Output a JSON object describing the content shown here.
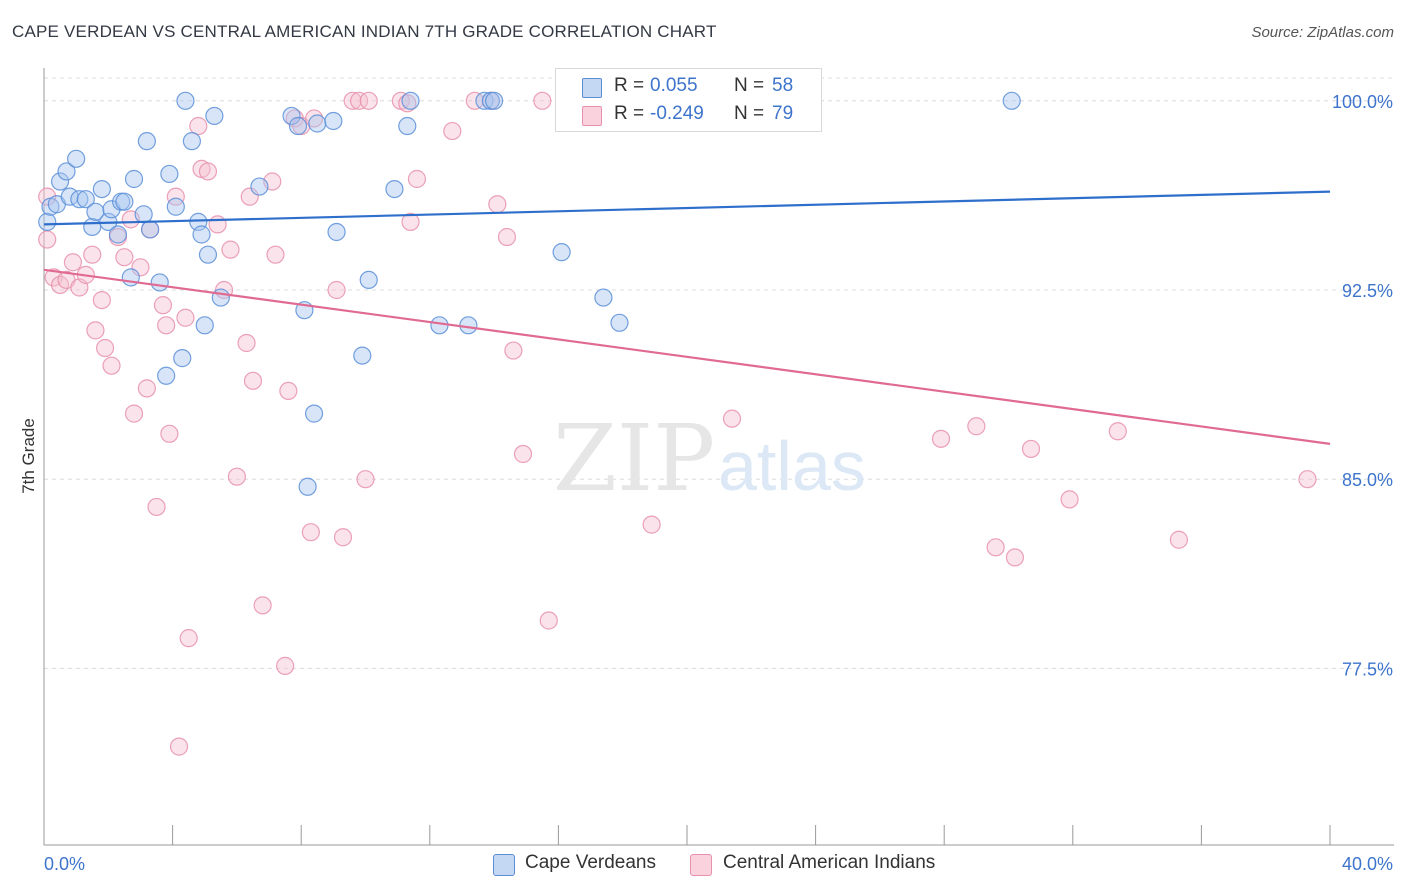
{
  "title": "CAPE VERDEAN VS CENTRAL AMERICAN INDIAN 7TH GRADE CORRELATION CHART",
  "source": "Source: ZipAtlas.com",
  "watermark": {
    "zip": "ZIP",
    "atlas": "atlas"
  },
  "legend_top": {
    "rows": [
      {
        "r_label": "R =",
        "r_value": "0.055",
        "n_label": "N =",
        "n_value": "58"
      },
      {
        "r_label": "R =",
        "r_value": "-0.249",
        "n_label": "N =",
        "n_value": "79"
      }
    ]
  },
  "colors": {
    "blue_fill": "#a9c6ef",
    "blue_stroke": "#5a8fd8",
    "blue_line": "#2f6fcc",
    "pink_fill": "#f5c0d0",
    "pink_stroke": "#e791ad",
    "pink_line": "#e06a92",
    "tick_label": "#3e74cc",
    "grid": "#dcdcdc"
  },
  "chart_data": {
    "type": "scatter",
    "title": "CAPE VERDEAN VS CENTRAL AMERICAN INDIAN 7TH GRADE CORRELATION CHART",
    "xlabel": "",
    "ylabel": "7th Grade",
    "xlim": [
      0,
      40
    ],
    "ylim": [
      70.5,
      101.3
    ],
    "x_tick_labels": [
      "0.0%",
      "40.0%"
    ],
    "y_ticks": [
      77.5,
      85.0,
      92.5,
      100.0
    ],
    "y_tick_labels": [
      "77.5%",
      "85.0%",
      "92.5%",
      "100.0%"
    ],
    "grid": "horizontal dashed",
    "legend_position": "bottom-center",
    "series": [
      {
        "name": "Cape Verdeans",
        "r": 0.055,
        "n": 58,
        "trend": {
          "x0": 0,
          "y0": 95.1,
          "x1": 40,
          "y1": 96.4
        },
        "points": [
          [
            0.1,
            95.2
          ],
          [
            0.2,
            95.8
          ],
          [
            0.4,
            95.9
          ],
          [
            0.5,
            96.8
          ],
          [
            0.7,
            97.2
          ],
          [
            0.8,
            96.2
          ],
          [
            1.0,
            97.7
          ],
          [
            1.1,
            96.1
          ],
          [
            1.3,
            96.1
          ],
          [
            1.5,
            95.0
          ],
          [
            1.6,
            95.6
          ],
          [
            1.8,
            96.5
          ],
          [
            2.0,
            95.2
          ],
          [
            2.1,
            95.7
          ],
          [
            2.3,
            94.7
          ],
          [
            2.4,
            96.0
          ],
          [
            2.5,
            96.0
          ],
          [
            2.7,
            93.0
          ],
          [
            2.8,
            96.9
          ],
          [
            3.1,
            95.5
          ],
          [
            3.2,
            98.4
          ],
          [
            3.3,
            94.9
          ],
          [
            3.6,
            92.8
          ],
          [
            3.8,
            89.1
          ],
          [
            3.9,
            97.1
          ],
          [
            4.1,
            95.8
          ],
          [
            4.3,
            89.8
          ],
          [
            4.4,
            100.0
          ],
          [
            4.6,
            98.4
          ],
          [
            4.8,
            95.2
          ],
          [
            4.9,
            94.7
          ],
          [
            5.0,
            91.1
          ],
          [
            5.1,
            93.9
          ],
          [
            5.3,
            99.4
          ],
          [
            5.5,
            92.2
          ],
          [
            6.7,
            96.6
          ],
          [
            7.7,
            99.4
          ],
          [
            7.9,
            99.0
          ],
          [
            8.1,
            91.7
          ],
          [
            8.2,
            84.7
          ],
          [
            8.4,
            87.6
          ],
          [
            8.5,
            99.1
          ],
          [
            9.0,
            99.2
          ],
          [
            9.1,
            94.8
          ],
          [
            9.9,
            89.9
          ],
          [
            10.1,
            92.9
          ],
          [
            10.9,
            96.5
          ],
          [
            11.3,
            99.0
          ],
          [
            11.4,
            100.0
          ],
          [
            12.3,
            91.1
          ],
          [
            13.2,
            91.1
          ],
          [
            13.7,
            100.0
          ],
          [
            13.9,
            100.0
          ],
          [
            14.0,
            100.0
          ],
          [
            16.1,
            94.0
          ],
          [
            17.4,
            92.2
          ],
          [
            17.9,
            91.2
          ],
          [
            30.1,
            100.0
          ]
        ]
      },
      {
        "name": "Central American Indians",
        "r": -0.249,
        "n": 79,
        "trend": {
          "x0": 0,
          "y0": 93.3,
          "x1": 40,
          "y1": 86.4
        },
        "points": [
          [
            0.1,
            96.2
          ],
          [
            0.1,
            94.5
          ],
          [
            0.3,
            93.0
          ],
          [
            0.5,
            92.7
          ],
          [
            0.7,
            92.9
          ],
          [
            0.9,
            93.6
          ],
          [
            1.1,
            92.6
          ],
          [
            1.3,
            93.1
          ],
          [
            1.5,
            93.9
          ],
          [
            1.6,
            90.9
          ],
          [
            1.8,
            92.1
          ],
          [
            1.9,
            90.2
          ],
          [
            2.1,
            89.5
          ],
          [
            2.3,
            94.6
          ],
          [
            2.5,
            93.8
          ],
          [
            2.7,
            95.3
          ],
          [
            2.8,
            87.6
          ],
          [
            3.0,
            93.4
          ],
          [
            3.2,
            88.6
          ],
          [
            3.3,
            94.9
          ],
          [
            3.5,
            83.9
          ],
          [
            3.7,
            91.9
          ],
          [
            3.8,
            91.1
          ],
          [
            3.9,
            86.8
          ],
          [
            4.1,
            96.2
          ],
          [
            4.2,
            74.4
          ],
          [
            4.4,
            91.4
          ],
          [
            4.5,
            78.7
          ],
          [
            4.8,
            99.0
          ],
          [
            4.9,
            97.3
          ],
          [
            5.1,
            97.2
          ],
          [
            5.4,
            95.1
          ],
          [
            5.6,
            92.5
          ],
          [
            5.8,
            94.1
          ],
          [
            6.0,
            85.1
          ],
          [
            6.3,
            90.4
          ],
          [
            6.4,
            96.2
          ],
          [
            6.5,
            88.9
          ],
          [
            6.8,
            80.0
          ],
          [
            7.1,
            96.8
          ],
          [
            7.2,
            93.9
          ],
          [
            7.5,
            77.6
          ],
          [
            7.6,
            88.5
          ],
          [
            7.8,
            99.3
          ],
          [
            8.0,
            99.0
          ],
          [
            8.3,
            82.9
          ],
          [
            8.4,
            99.3
          ],
          [
            9.1,
            92.5
          ],
          [
            9.3,
            82.7
          ],
          [
            9.6,
            100.0
          ],
          [
            9.8,
            100.0
          ],
          [
            10.0,
            85.0
          ],
          [
            10.1,
            100.0
          ],
          [
            11.1,
            100.0
          ],
          [
            11.3,
            99.9
          ],
          [
            11.4,
            95.2
          ],
          [
            11.6,
            96.9
          ],
          [
            12.7,
            98.8
          ],
          [
            13.4,
            100.0
          ],
          [
            13.9,
            100.0
          ],
          [
            14.1,
            95.9
          ],
          [
            14.4,
            94.6
          ],
          [
            14.6,
            90.1
          ],
          [
            14.9,
            86.0
          ],
          [
            15.5,
            100.0
          ],
          [
            15.7,
            79.4
          ],
          [
            17.7,
            100.0
          ],
          [
            18.9,
            83.2
          ],
          [
            20.2,
            100.0
          ],
          [
            21.4,
            87.4
          ],
          [
            27.9,
            86.6
          ],
          [
            29.0,
            87.1
          ],
          [
            29.6,
            82.3
          ],
          [
            30.2,
            81.9
          ],
          [
            30.7,
            86.2
          ],
          [
            31.9,
            84.2
          ],
          [
            33.4,
            86.9
          ],
          [
            35.3,
            82.6
          ],
          [
            39.3,
            85.0
          ]
        ]
      }
    ]
  },
  "legend_bottom": {
    "items": [
      "Cape Verdeans",
      "Central American Indians"
    ]
  }
}
